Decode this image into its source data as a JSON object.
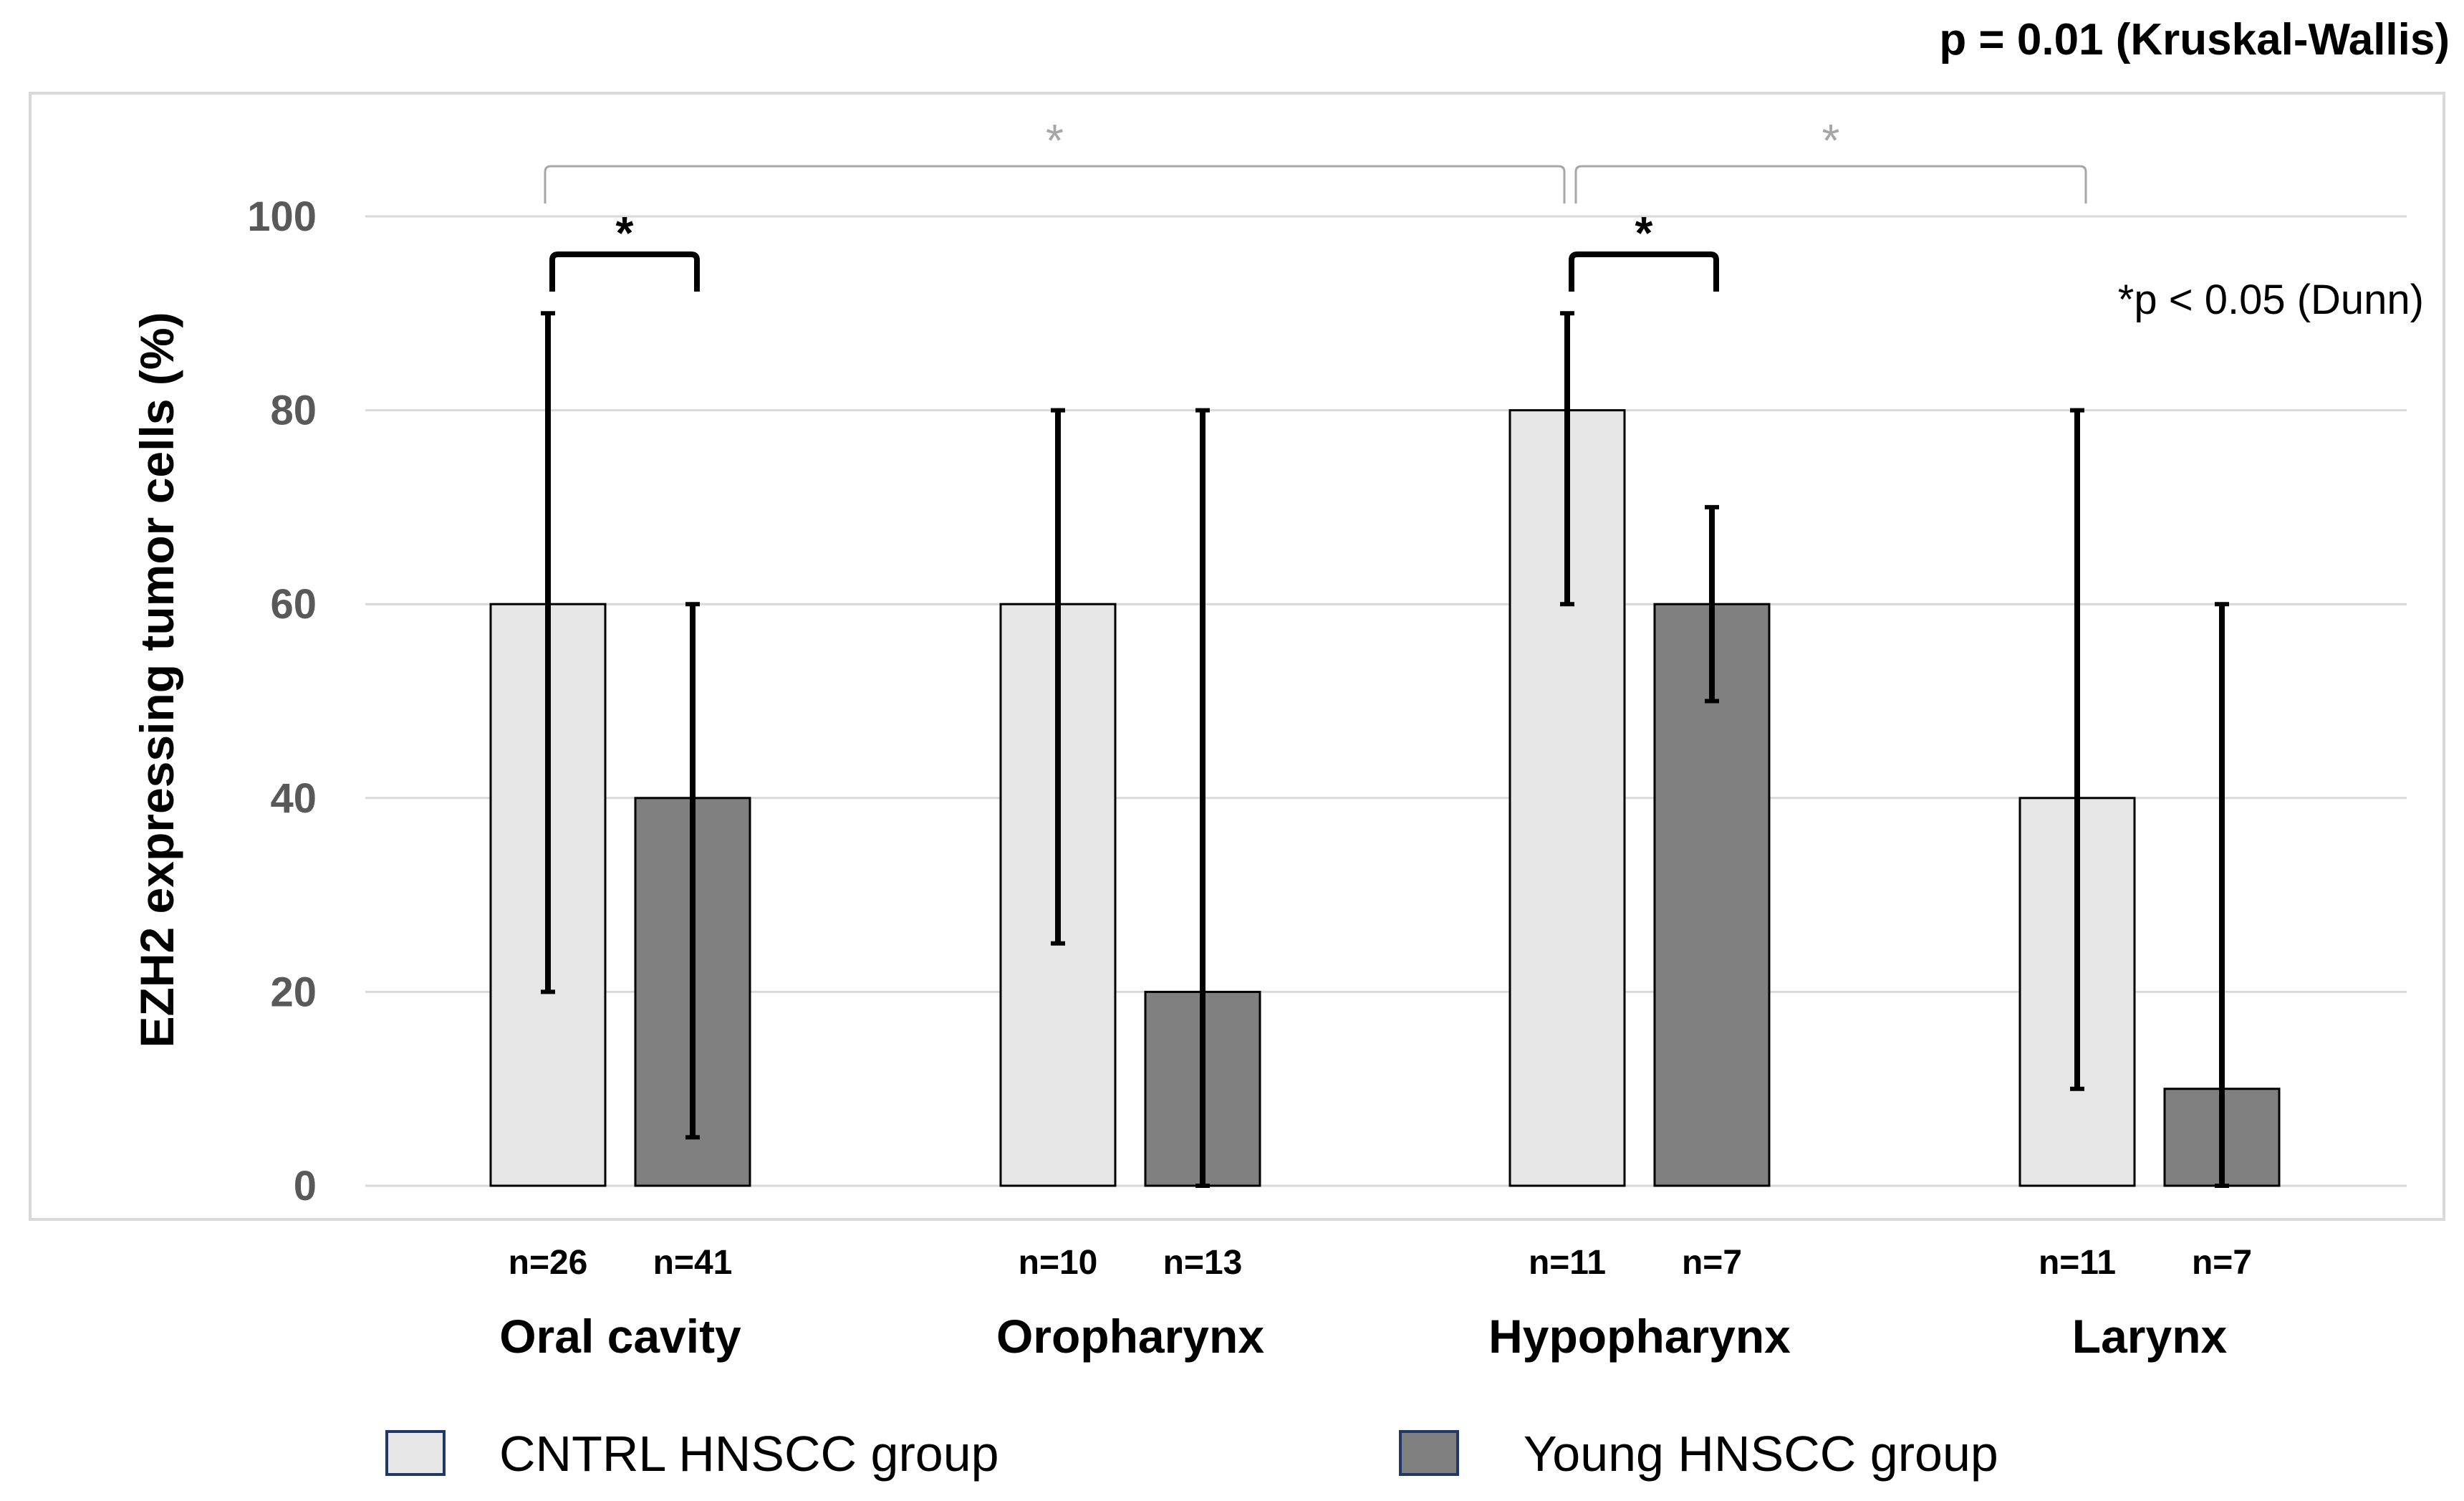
{
  "chart_data": {
    "type": "bar",
    "title": "p = 0.01 (Kruskal-Wallis)",
    "annotation": "*p < 0.05 (Dunn)",
    "ylabel": "EZH2 expressing tumor cells (%)",
    "xlabel": "",
    "ylim": [
      0,
      100
    ],
    "yticks": [
      "0",
      "20",
      "40",
      "60",
      "80",
      "100"
    ],
    "grid": true,
    "legend_position": "bottom",
    "categories": [
      "Oral cavity",
      "Oropharynx",
      "Hypopharynx",
      "Larynx"
    ],
    "series": [
      {
        "name": "CNTRL HNSCC group",
        "color": "#e7e6e6",
        "values": [
          60,
          60,
          80,
          40
        ],
        "error_low": [
          20,
          25,
          60,
          10
        ],
        "error_high": [
          90,
          80,
          90,
          80
        ],
        "n_labels": [
          "n=26",
          "n=10",
          "n=11",
          "n=11"
        ]
      },
      {
        "name": "Young HNSCC group",
        "color": "#808080",
        "values": [
          40,
          20,
          60,
          10
        ],
        "error_low": [
          5,
          0,
          50,
          0
        ],
        "error_high": [
          60,
          80,
          70,
          60
        ],
        "n_labels": [
          "n=41",
          "n=13",
          "n=7",
          "n=7"
        ]
      }
    ],
    "significance_marker": "*"
  }
}
